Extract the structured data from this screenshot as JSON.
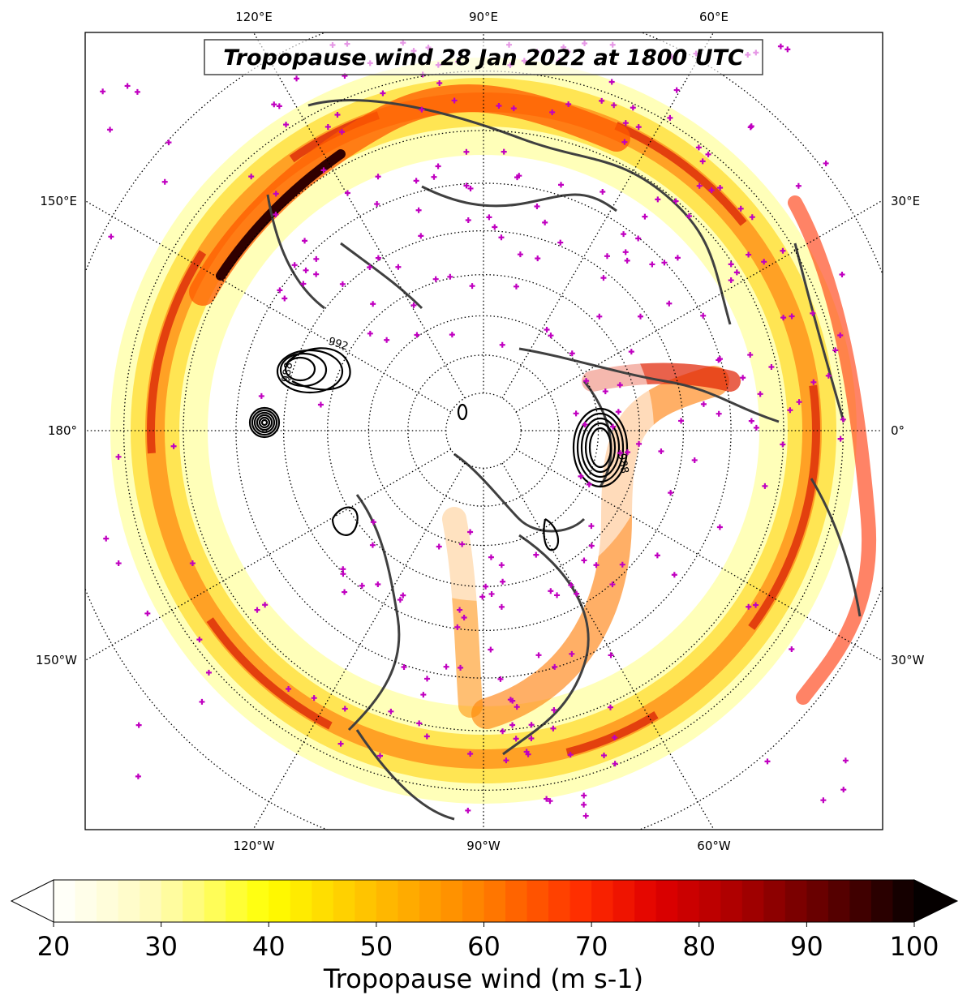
{
  "map": {
    "title": "Tropopause wind 28 Jan 2022 at 1800 UTC",
    "projection": "north-polar-stereographic",
    "field": "tropopause wind speed",
    "overlay": "sea-level pressure contours (black) and station markers (magenta +)",
    "longitude_labels": [
      {
        "text": "120°E",
        "edge": "top"
      },
      {
        "text": "90°E",
        "edge": "top"
      },
      {
        "text": "60°E",
        "edge": "top"
      },
      {
        "text": "150°E",
        "edge": "left"
      },
      {
        "text": "180°",
        "edge": "left"
      },
      {
        "text": "150°W",
        "edge": "left"
      },
      {
        "text": "30°E",
        "edge": "right"
      },
      {
        "text": "0°",
        "edge": "right"
      },
      {
        "text": "30°W",
        "edge": "right"
      },
      {
        "text": "120°W",
        "edge": "bottom"
      },
      {
        "text": "90°W",
        "edge": "bottom"
      },
      {
        "text": "60°W",
        "edge": "bottom"
      }
    ],
    "contour_labels": [
      "992",
      "988",
      "988"
    ],
    "colors": {
      "station_marker": "#c000c0",
      "coastline": "#404040",
      "contour": "#000000"
    }
  },
  "colorbar": {
    "label": "Tropopause wind (m s-1)",
    "min": 20,
    "max": 100,
    "ticks": [
      "20",
      "30",
      "40",
      "50",
      "60",
      "70",
      "80",
      "90",
      "100"
    ],
    "extend": "both",
    "colormap": "hot_r"
  }
}
